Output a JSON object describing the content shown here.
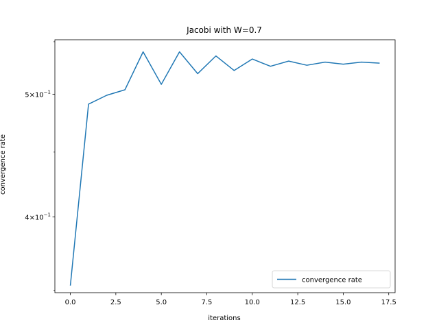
{
  "chart_data": {
    "type": "line",
    "title": "Jacobi with W=0.7",
    "xlabel": "iterations",
    "ylabel": "convergence rate",
    "yscale": "log",
    "xlim": [
      -0.85,
      17.85
    ],
    "ylim": [
      0.3485,
      0.552
    ],
    "x_ticks": [
      0,
      2.5,
      5,
      7.5,
      10,
      12.5,
      15,
      17.5
    ],
    "x_tick_labels": [
      "0.0",
      "2.5",
      "5.0",
      "7.5",
      "10.0",
      "12.5",
      "15.0",
      "17.5"
    ],
    "y_ticks": [
      {
        "value": 0.4,
        "base": "4",
        "exp": "−1"
      },
      {
        "value": 0.5,
        "base": "5",
        "exp": "−1"
      }
    ],
    "legend_position": "lower right",
    "series": [
      {
        "name": "convergence rate",
        "color": "#1f77b4",
        "x": [
          0,
          1,
          2,
          3,
          4,
          5,
          6,
          7,
          8,
          9,
          10,
          11,
          12,
          13,
          14,
          15,
          16,
          17
        ],
        "y": [
          0.353,
          0.491,
          0.499,
          0.504,
          0.54,
          0.509,
          0.54,
          0.519,
          0.536,
          0.522,
          0.533,
          0.526,
          0.531,
          0.527,
          0.53,
          0.528,
          0.53,
          0.529
        ]
      }
    ]
  }
}
